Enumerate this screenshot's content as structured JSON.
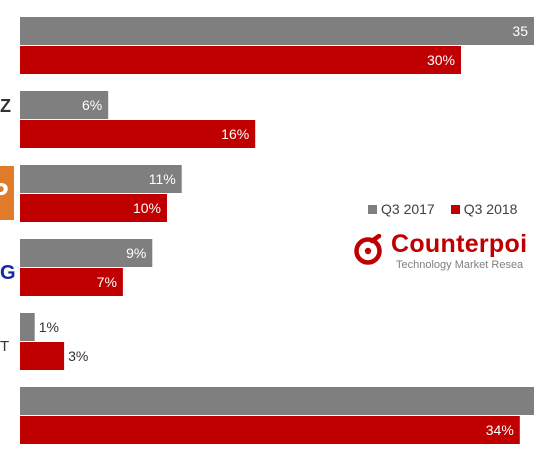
{
  "chart_data": {
    "type": "bar",
    "orientation": "horizontal",
    "legend_position": "right",
    "grid": false,
    "xlim": [
      0,
      35
    ],
    "series": [
      {
        "name": "Q3 2017",
        "color": "#7f7f7f",
        "values": [
          35,
          6,
          11,
          9,
          1,
          null
        ],
        "labels": [
          "35",
          "6%",
          "11%",
          "9%",
          "1%",
          ""
        ]
      },
      {
        "name": "Q3 2018",
        "color": "#c00000",
        "values": [
          30,
          16,
          10,
          7,
          3,
          34
        ],
        "labels": [
          "30%",
          "16%",
          "10%",
          "7%",
          "3%",
          "34%"
        ]
      }
    ]
  },
  "legend": {
    "q3_2017": "Q3 2017",
    "q3_2018": "Q3 2018"
  },
  "logo": {
    "name": "Counterpoi",
    "tagline": "Technology Market Resea"
  },
  "brands": {
    "vivo": "Z",
    "oppo": "P",
    "samsung": "G",
    "lenovo": "T"
  }
}
